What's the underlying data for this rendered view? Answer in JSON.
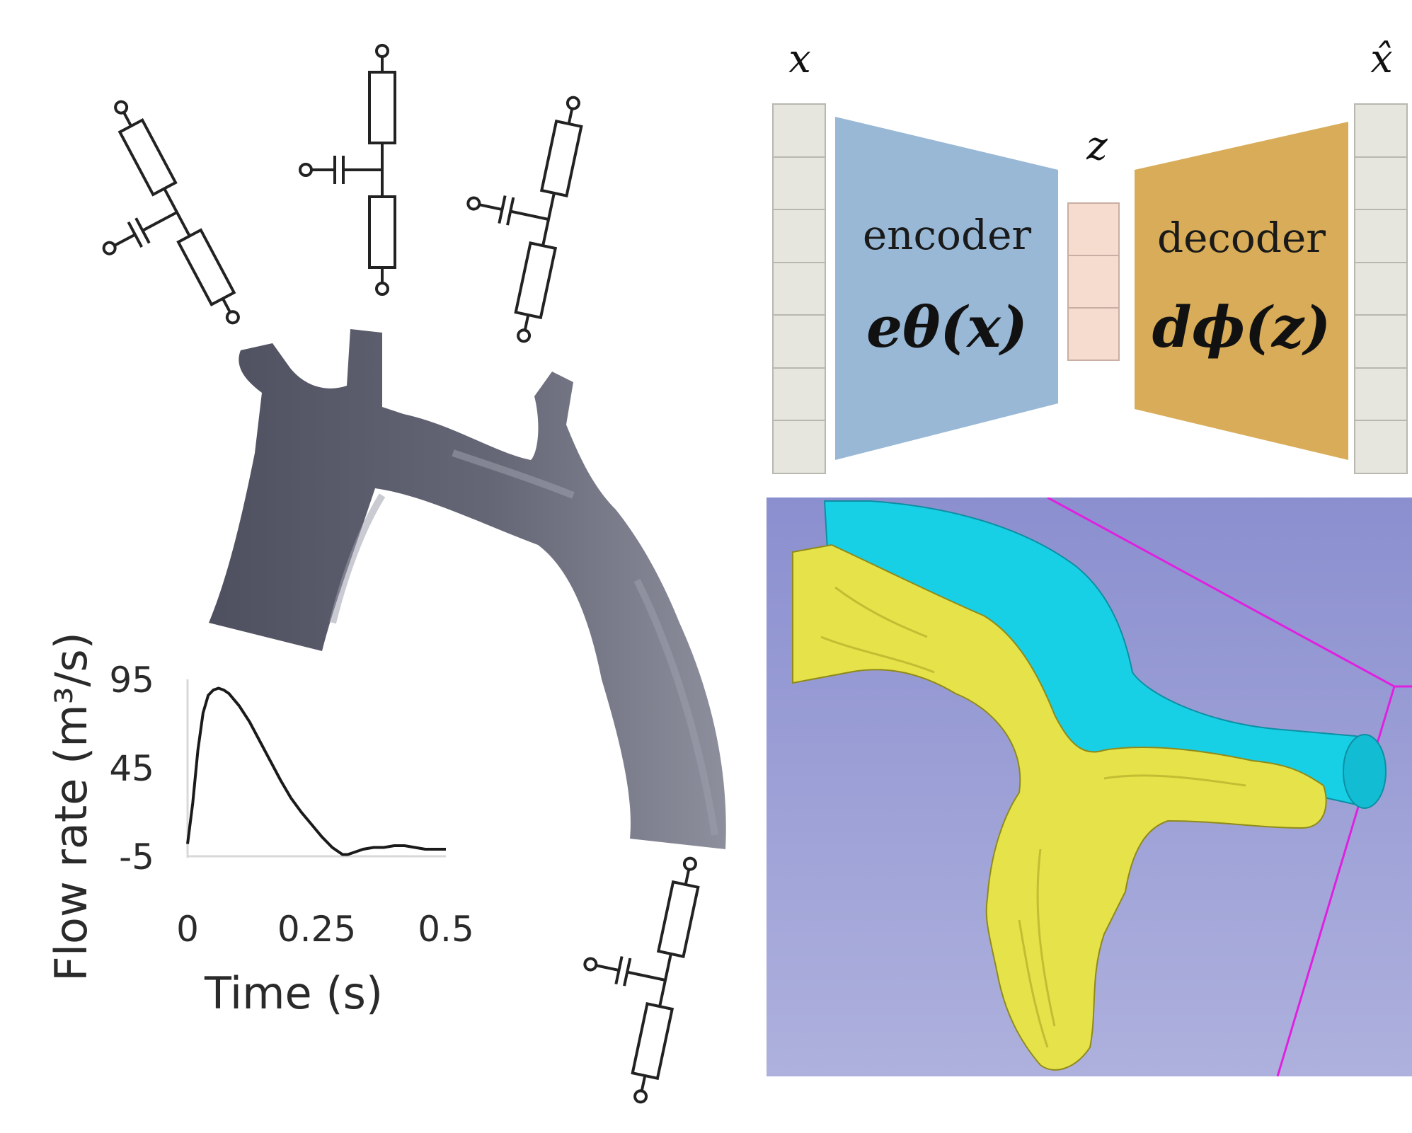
{
  "autoencoder": {
    "input_label": "x",
    "output_label": "x̂",
    "latent_label": "z",
    "encoder_label": "encoder",
    "encoder_formula": "eθ(x)",
    "decoder_label": "decoder",
    "decoder_formula": "dϕ(z)",
    "colors": {
      "vector_cells": "#e6e6de",
      "encoder": "#98b8d6",
      "latent": "#f6dccf",
      "decoder": "#d8ac58"
    }
  },
  "vessel_model": {
    "colors": {
      "vessel": "#5d5f6f",
      "vessel_highlight": "#8c8e9c"
    }
  },
  "segmentation_view": {
    "colors": {
      "background": "#9aa0d4",
      "template_mesh": "#18d0e6",
      "target_mesh": "#e6e24a",
      "bounding_box": "#e020e0"
    }
  },
  "chart_data": {
    "type": "line",
    "xlabel": "Time (s)",
    "ylabel": "Flow rate (m³/s)",
    "xticks": [
      "0",
      "0.25",
      "0.5"
    ],
    "yticks": [
      "95",
      "45",
      "-5"
    ],
    "xlim": [
      0,
      0.5
    ],
    "ylim": [
      -5,
      95
    ],
    "x": [
      0,
      0.01,
      0.02,
      0.03,
      0.04,
      0.05,
      0.06,
      0.07,
      0.08,
      0.1,
      0.12,
      0.14,
      0.16,
      0.18,
      0.2,
      0.22,
      0.24,
      0.26,
      0.28,
      0.3,
      0.31,
      0.32,
      0.34,
      0.36,
      0.38,
      0.4,
      0.42,
      0.44,
      0.46,
      0.48,
      0.5
    ],
    "y": [
      2,
      25,
      55,
      76,
      86,
      89,
      90,
      89,
      87,
      80,
      71,
      60,
      49,
      38,
      28,
      20,
      13,
      6,
      0,
      -4,
      -4,
      -3,
      -1,
      0,
      0,
      1,
      1,
      0,
      -1,
      -1,
      -1
    ]
  }
}
